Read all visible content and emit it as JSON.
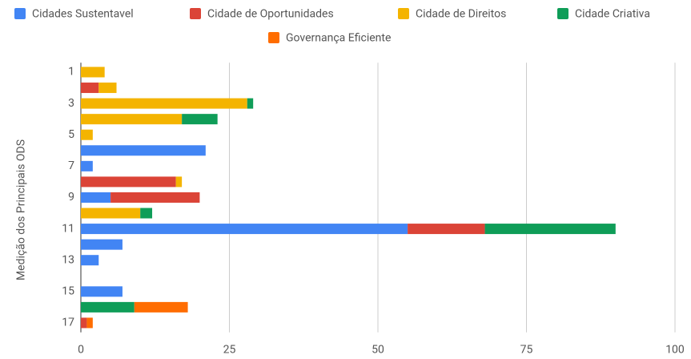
{
  "chart_data": {
    "type": "stacked-bar-horizontal",
    "ylabel": "Medição dos Principais ODS",
    "categories": [
      "1",
      null,
      "3",
      null,
      "5",
      null,
      "7",
      null,
      "9",
      null,
      "11",
      null,
      "13",
      null,
      "15",
      null,
      "17"
    ],
    "series": [
      {
        "name": "Cidades Sustentavel",
        "color": "#4285f4",
        "values": [
          0,
          0,
          0,
          0,
          0,
          21,
          2,
          0,
          5,
          0,
          55,
          7,
          3,
          0,
          7,
          0,
          0
        ]
      },
      {
        "name": "Cidade de Oportunidades",
        "color": "#db4437",
        "values": [
          0,
          3,
          0,
          0,
          0,
          0,
          0,
          16,
          15,
          0,
          13,
          0,
          0,
          0,
          0,
          0,
          1
        ]
      },
      {
        "name": "Cidade de Direitos",
        "color": "#f4b400",
        "values": [
          4,
          3,
          28,
          17,
          2,
          0,
          0,
          1,
          0,
          10,
          0,
          0,
          0,
          0,
          0,
          0,
          0
        ]
      },
      {
        "name": "Cidade Criativa",
        "color": "#0f9d58",
        "values": [
          0,
          0,
          1,
          6,
          0,
          0,
          0,
          0,
          0,
          2,
          22,
          0,
          0,
          0,
          0,
          9,
          0
        ]
      },
      {
        "name": "Governança Eficiente",
        "color": "#ff6d00",
        "values": [
          0,
          0,
          0,
          0,
          0,
          0,
          0,
          0,
          0,
          0,
          0,
          0,
          0,
          0,
          0,
          9,
          1
        ]
      }
    ],
    "xlim": [
      0,
      100
    ],
    "xticks": [
      0,
      25,
      50,
      75,
      100
    ],
    "grid": true,
    "legend": "top"
  }
}
